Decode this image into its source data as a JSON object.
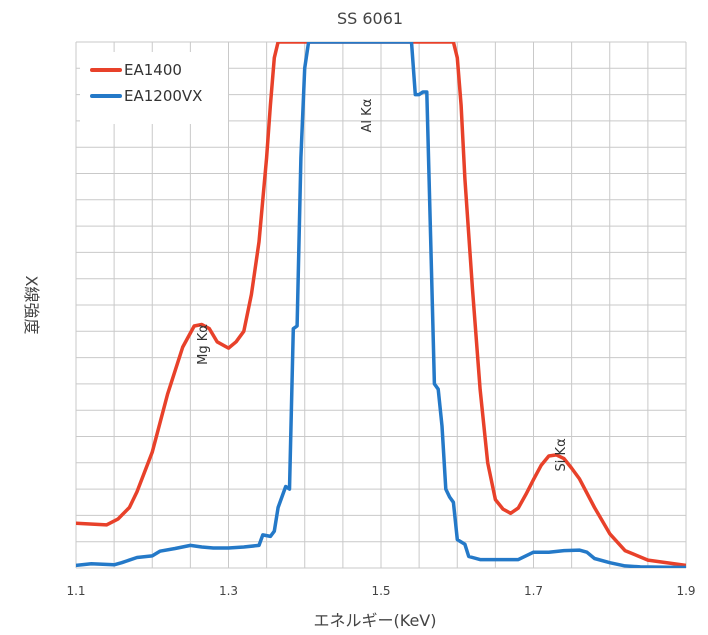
{
  "chart_data": {
    "type": "line",
    "title": "SS 6061",
    "xlabel": "エネルギー(KeV)",
    "ylabel": "X線強度",
    "xlim": [
      1.1,
      1.9
    ],
    "ylim": [
      0,
      100
    ],
    "x_ticks": [
      1.1,
      1.3,
      1.5,
      1.7,
      1.9
    ],
    "x_tick_labels": [
      "1.1",
      "1.3",
      "1.5",
      "1.7",
      "1.9"
    ],
    "grid": true,
    "legend_position": "top-left",
    "annotations": [
      {
        "text": "Mg Kα",
        "x": 1.265,
        "y": 42.5
      },
      {
        "text": "Al Kα",
        "x": 1.48,
        "y": 86
      },
      {
        "text": "Si Kα",
        "x": 1.735,
        "y": 21.5
      }
    ],
    "series": [
      {
        "name": "EA1400",
        "color": "#e8412a",
        "x": [
          1.1,
          1.14,
          1.155,
          1.17,
          1.18,
          1.2,
          1.22,
          1.24,
          1.255,
          1.265,
          1.275,
          1.285,
          1.3,
          1.31,
          1.32,
          1.33,
          1.34,
          1.35,
          1.355,
          1.36,
          1.365,
          1.595,
          1.6,
          1.605,
          1.61,
          1.62,
          1.63,
          1.64,
          1.65,
          1.66,
          1.67,
          1.68,
          1.69,
          1.7,
          1.71,
          1.72,
          1.73,
          1.74,
          1.75,
          1.76,
          1.78,
          1.8,
          1.82,
          1.85,
          1.9
        ],
        "values": [
          8.5,
          8.2,
          9.3,
          11.5,
          14.5,
          22,
          33,
          42,
          46,
          46.3,
          45.5,
          43,
          41.8,
          43,
          45,
          52,
          62,
          78,
          88,
          97,
          100,
          100,
          97,
          88,
          74,
          53,
          34,
          20,
          13,
          11.2,
          10.4,
          11.4,
          14,
          16.8,
          19.5,
          21.3,
          21.5,
          20.8,
          19,
          17,
          11.5,
          6.5,
          3.3,
          1.5,
          0.5
        ]
      },
      {
        "name": "EA1200VX",
        "color": "#2479c8",
        "x": [
          1.1,
          1.12,
          1.15,
          1.16,
          1.18,
          1.2,
          1.21,
          1.23,
          1.25,
          1.265,
          1.28,
          1.3,
          1.32,
          1.34,
          1.345,
          1.355,
          1.36,
          1.365,
          1.375,
          1.38,
          1.385,
          1.39,
          1.395,
          1.4,
          1.405,
          1.54,
          1.545,
          1.55,
          1.555,
          1.56,
          1.565,
          1.57,
          1.575,
          1.58,
          1.585,
          1.59,
          1.595,
          1.6,
          1.61,
          1.615,
          1.62,
          1.63,
          1.65,
          1.68,
          1.7,
          1.72,
          1.74,
          1.76,
          1.77,
          1.78,
          1.8,
          1.82,
          1.84,
          1.9
        ],
        "values": [
          0.5,
          0.8,
          0.6,
          1.0,
          2.0,
          2.3,
          3.2,
          3.7,
          4.3,
          4.0,
          3.8,
          3.8,
          4.0,
          4.3,
          6.3,
          6.0,
          7.0,
          11.5,
          15.5,
          15.0,
          45.5,
          46.0,
          78,
          95,
          100,
          100,
          90,
          90,
          90.5,
          90.5,
          63,
          35,
          34,
          27,
          15,
          13.5,
          12.5,
          5.4,
          4.5,
          2.2,
          2.0,
          1.6,
          1.6,
          1.6,
          3.0,
          3.0,
          3.3,
          3.4,
          3.0,
          1.8,
          1.0,
          0.4,
          0.2,
          0.1
        ]
      }
    ]
  }
}
